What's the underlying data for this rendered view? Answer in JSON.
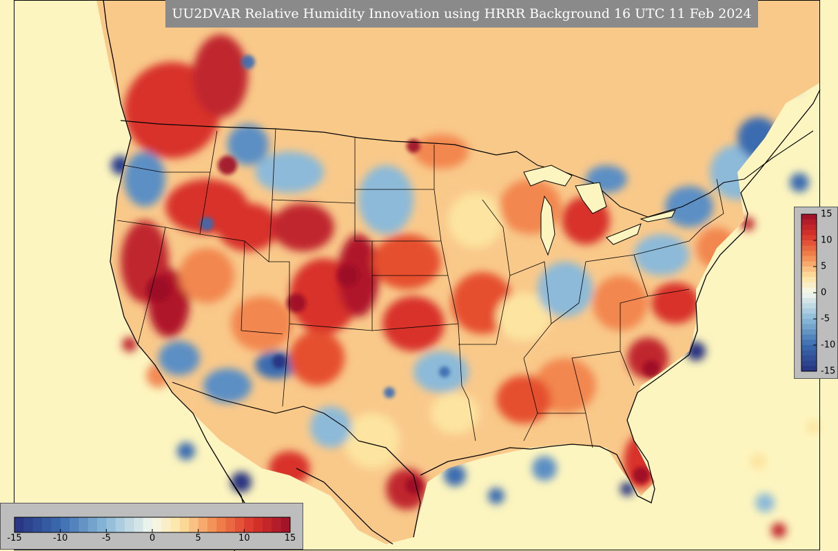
{
  "title": "UU2DVAR Relative Humidity Innovation using HRRR Background 16 UTC 11 Feb 2024",
  "colorbar": {
    "min": -15,
    "max": 15,
    "step": 1,
    "ticks": [
      "-15",
      "-10",
      "-5",
      "0",
      "5",
      "10",
      "15"
    ],
    "colors": {
      "neg_extreme": "#27317f",
      "neg_strong": "#3b6cb0",
      "neg_mid": "#8cbad8",
      "neutral": "#f4f8ee",
      "pos_low": "#fde4a0",
      "pos_mid": "#f2874f",
      "pos_strong": "#d8332a",
      "pos_extreme": "#9c0f28"
    }
  },
  "map": {
    "background_color": "#fdf5bf",
    "boundary_color": "#000000",
    "features": [
      "coastlines",
      "country-borders",
      "state-borders",
      "lakes"
    ]
  }
}
